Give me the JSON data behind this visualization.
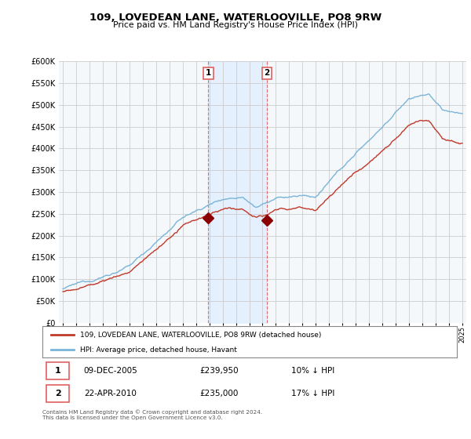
{
  "title": "109, LOVEDEAN LANE, WATERLOOVILLE, PO8 9RW",
  "subtitle": "Price paid vs. HM Land Registry's House Price Index (HPI)",
  "legend_line1": "109, LOVEDEAN LANE, WATERLOOVILLE, PO8 9RW (detached house)",
  "legend_line2": "HPI: Average price, detached house, Havant",
  "footnote": "Contains HM Land Registry data © Crown copyright and database right 2024.\nThis data is licensed under the Open Government Licence v3.0.",
  "sale1_date": "09-DEC-2005",
  "sale1_price": "£239,950",
  "sale1_hpi": "10% ↓ HPI",
  "sale2_date": "22-APR-2010",
  "sale2_price": "£235,000",
  "sale2_hpi": "17% ↓ HPI",
  "hpi_color": "#7ab4d8",
  "price_color": "#c0392b",
  "sale_marker_color": "#8b0000",
  "vline_color": "#e06060",
  "shade_color": "#ddeeff",
  "bg_color": "#f5f8fb",
  "grid_color": "#cccccc",
  "ylim": [
    0,
    600000
  ],
  "yticks": [
    0,
    50000,
    100000,
    150000,
    200000,
    250000,
    300000,
    350000,
    400000,
    450000,
    500000,
    550000,
    600000
  ],
  "sale1_x": 2005.92,
  "sale1_y": 239950,
  "sale2_x": 2010.31,
  "sale2_y": 235000,
  "xmin": 1995,
  "xmax": 2025
}
